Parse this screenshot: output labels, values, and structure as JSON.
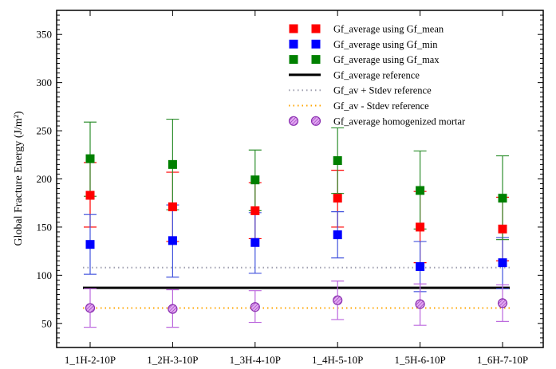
{
  "chart_data": {
    "type": "scatter",
    "title": "",
    "xlabel": "",
    "ylabel": "Global Fracture Energy (J/m²)",
    "categories": [
      "1_1H-2-10P",
      "1_2H-3-10P",
      "1_3H-4-10P",
      "1_4H-5-10P",
      "1_5H-6-10P",
      "1_6H-7-10P"
    ],
    "ylim": [
      25,
      375
    ],
    "yticks": [
      50,
      100,
      150,
      200,
      250,
      300,
      350
    ],
    "grid": false,
    "legend_position": "top-right",
    "series": [
      {
        "name": "Gf_average using Gf_mean",
        "marker": "square",
        "color": "#ff0000",
        "error_color": "#ff0000",
        "values": [
          183,
          171,
          167,
          180,
          150,
          148
        ],
        "error_low": [
          150,
          135,
          138,
          150,
          113,
          115
        ],
        "error_high": [
          217,
          207,
          196,
          209,
          187,
          181
        ]
      },
      {
        "name": "Gf_average using Gf_min",
        "marker": "square",
        "color": "#0000ff",
        "error_color": "#4455dd",
        "values": [
          132,
          136,
          134,
          142,
          109,
          113
        ],
        "error_low": [
          101,
          98,
          102,
          118,
          83,
          86
        ],
        "error_high": [
          163,
          173,
          165,
          166,
          135,
          139
        ]
      },
      {
        "name": "Gf_average using Gf_max",
        "marker": "square",
        "color": "#008000",
        "error_color": "#2f8f2f",
        "values": [
          221,
          215,
          199,
          219,
          188,
          180
        ],
        "error_low": [
          182,
          168,
          167,
          185,
          148,
          137
        ],
        "error_high": [
          259,
          262,
          230,
          253,
          229,
          224
        ]
      },
      {
        "name": "Gf_average homogenized mortar",
        "marker": "hatched-circle",
        "color": "#cc77ee",
        "error_color": "#bb66dd",
        "values": [
          66,
          65,
          67,
          74,
          70,
          71
        ],
        "error_low": [
          46,
          46,
          51,
          54,
          48,
          52
        ],
        "error_high": [
          86,
          85,
          84,
          94,
          91,
          90
        ]
      }
    ],
    "reference_lines": [
      {
        "name": "Gf_average reference",
        "value": 87,
        "style": "solid",
        "color": "#000000",
        "width": 3
      },
      {
        "name": "Gf_av + Stdev reference",
        "value": 108,
        "style": "dotted",
        "color": "#a0a0b0",
        "width": 2
      },
      {
        "name": "Gf_av - Stdev reference",
        "value": 66,
        "style": "dotted",
        "color": "#ffa500",
        "width": 2
      }
    ],
    "legend": [
      {
        "label": "Gf_average using Gf_mean",
        "kind": "square",
        "color": "#ff0000"
      },
      {
        "label": "Gf_average using Gf_min",
        "kind": "square",
        "color": "#0000ff"
      },
      {
        "label": "Gf_average using Gf_max",
        "kind": "square",
        "color": "#008000"
      },
      {
        "label": "Gf_average reference",
        "kind": "line-solid",
        "color": "#000000"
      },
      {
        "label": "Gf_av + Stdev reference",
        "kind": "line-dotted",
        "color": "#a0a0b0"
      },
      {
        "label": "Gf_av - Stdev reference",
        "kind": "line-dotted",
        "color": "#ffa500"
      },
      {
        "label": "Gf_average homogenized mortar",
        "kind": "circle",
        "color": "#cc77ee"
      }
    ]
  }
}
